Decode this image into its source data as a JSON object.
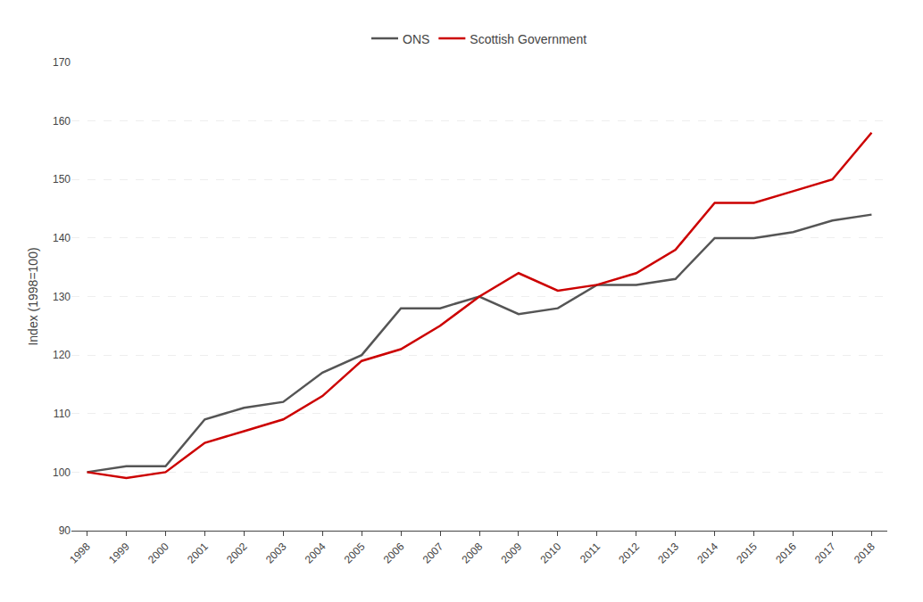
{
  "chart_data": {
    "type": "line",
    "y_label": "Index (1998=100)",
    "x": [
      1998,
      1999,
      2000,
      2001,
      2002,
      2003,
      2004,
      2005,
      2006,
      2007,
      2008,
      2009,
      2010,
      2011,
      2012,
      2013,
      2014,
      2015,
      2016,
      2017,
      2018
    ],
    "series": [
      {
        "name": "ONS",
        "color": "#555555",
        "values": [
          100,
          101,
          101,
          109,
          111,
          112,
          117,
          120,
          128,
          128,
          130,
          127,
          128,
          132,
          132,
          133,
          140,
          140,
          141,
          143,
          144
        ]
      },
      {
        "name": "Scottish Government",
        "color": "#cc0000",
        "values": [
          100,
          99,
          100,
          105,
          107,
          109,
          113,
          119,
          121,
          125,
          130,
          134,
          131,
          132,
          134,
          138,
          146,
          146,
          148,
          150,
          158
        ]
      }
    ],
    "xlim": [
      1997.6,
      2018.4
    ],
    "xticks": [
      1998,
      1999,
      2000,
      2001,
      2002,
      2003,
      2004,
      2005,
      2006,
      2007,
      2008,
      2009,
      2010,
      2011,
      2012,
      2013,
      2014,
      2015,
      2016,
      2017,
      2018
    ],
    "ylim": [
      90,
      170
    ],
    "yticks": [
      90,
      100,
      110,
      120,
      130,
      140,
      150,
      160,
      170
    ],
    "grid": true,
    "legend": "top"
  }
}
